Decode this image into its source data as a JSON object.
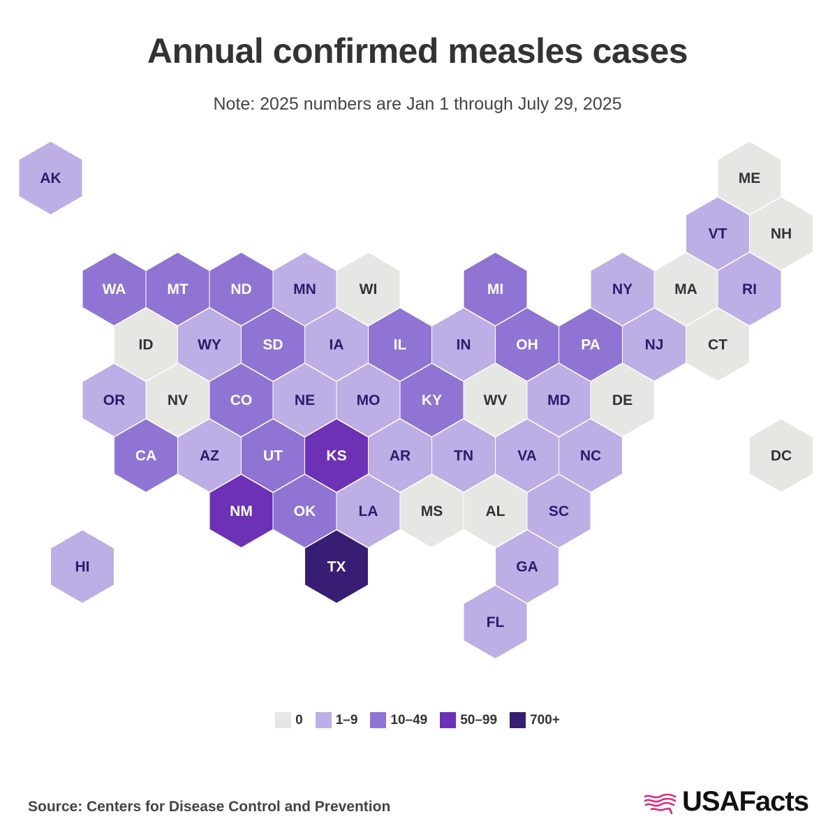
{
  "title": "Annual confirmed measles cases",
  "subtitle": "Note: 2025 numbers are Jan 1 through July 29, 2025",
  "source": "Source: Centers for Disease Control and Prevention",
  "brand": "USAFacts",
  "brand_color": "#e0267e",
  "legend": [
    {
      "bin": "0",
      "label": "0",
      "color": "#e6e6e3",
      "text_color": "#333333"
    },
    {
      "bin": "1-9",
      "label": "1–9",
      "color": "#bdaee6",
      "text_color": "#2e1a6a"
    },
    {
      "bin": "10-49",
      "label": "10–49",
      "color": "#8f74d3",
      "text_color": "#ffffff"
    },
    {
      "bin": "50-99",
      "label": "50–99",
      "color": "#6c31b5",
      "text_color": "#ffffff"
    },
    {
      "bin": "700+",
      "label": "700+",
      "color": "#371d73",
      "text_color": "#ffffff"
    }
  ],
  "states": [
    {
      "abbr": "AK",
      "row": 0,
      "col": 0,
      "bin": "1-9"
    },
    {
      "abbr": "ME",
      "row": 0,
      "col": 11,
      "bin": "0"
    },
    {
      "abbr": "VT",
      "row": 1,
      "col": 10,
      "bin": "1-9"
    },
    {
      "abbr": "NH",
      "row": 1,
      "col": 11,
      "bin": "0"
    },
    {
      "abbr": "WA",
      "row": 2,
      "col": 1,
      "bin": "10-49"
    },
    {
      "abbr": "MT",
      "row": 2,
      "col": 2,
      "bin": "10-49"
    },
    {
      "abbr": "ND",
      "row": 2,
      "col": 3,
      "bin": "10-49"
    },
    {
      "abbr": "MN",
      "row": 2,
      "col": 4,
      "bin": "1-9"
    },
    {
      "abbr": "WI",
      "row": 2,
      "col": 5,
      "bin": "0"
    },
    {
      "abbr": "MI",
      "row": 2,
      "col": 7,
      "bin": "10-49"
    },
    {
      "abbr": "NY",
      "row": 2,
      "col": 9,
      "bin": "1-9"
    },
    {
      "abbr": "MA",
      "row": 2,
      "col": 10,
      "bin": "0"
    },
    {
      "abbr": "RI",
      "row": 2,
      "col": 11,
      "bin": "1-9"
    },
    {
      "abbr": "ID",
      "row": 3,
      "col": 1,
      "bin": "0"
    },
    {
      "abbr": "WY",
      "row": 3,
      "col": 2,
      "bin": "1-9"
    },
    {
      "abbr": "SD",
      "row": 3,
      "col": 3,
      "bin": "10-49"
    },
    {
      "abbr": "IA",
      "row": 3,
      "col": 4,
      "bin": "1-9"
    },
    {
      "abbr": "IL",
      "row": 3,
      "col": 5,
      "bin": "10-49"
    },
    {
      "abbr": "IN",
      "row": 3,
      "col": 6,
      "bin": "1-9"
    },
    {
      "abbr": "OH",
      "row": 3,
      "col": 7,
      "bin": "10-49"
    },
    {
      "abbr": "PA",
      "row": 3,
      "col": 8,
      "bin": "10-49"
    },
    {
      "abbr": "NJ",
      "row": 3,
      "col": 9,
      "bin": "1-9"
    },
    {
      "abbr": "CT",
      "row": 3,
      "col": 10,
      "bin": "0"
    },
    {
      "abbr": "OR",
      "row": 4,
      "col": 1,
      "bin": "1-9"
    },
    {
      "abbr": "NV",
      "row": 4,
      "col": 2,
      "bin": "0"
    },
    {
      "abbr": "CO",
      "row": 4,
      "col": 3,
      "bin": "10-49"
    },
    {
      "abbr": "NE",
      "row": 4,
      "col": 4,
      "bin": "1-9"
    },
    {
      "abbr": "MO",
      "row": 4,
      "col": 5,
      "bin": "1-9"
    },
    {
      "abbr": "KY",
      "row": 4,
      "col": 6,
      "bin": "10-49"
    },
    {
      "abbr": "WV",
      "row": 4,
      "col": 7,
      "bin": "0"
    },
    {
      "abbr": "MD",
      "row": 4,
      "col": 8,
      "bin": "1-9"
    },
    {
      "abbr": "DE",
      "row": 4,
      "col": 9,
      "bin": "0"
    },
    {
      "abbr": "CA",
      "row": 5,
      "col": 1,
      "bin": "10-49"
    },
    {
      "abbr": "AZ",
      "row": 5,
      "col": 2,
      "bin": "1-9"
    },
    {
      "abbr": "UT",
      "row": 5,
      "col": 3,
      "bin": "10-49"
    },
    {
      "abbr": "KS",
      "row": 5,
      "col": 4,
      "bin": "50-99"
    },
    {
      "abbr": "AR",
      "row": 5,
      "col": 5,
      "bin": "1-9"
    },
    {
      "abbr": "TN",
      "row": 5,
      "col": 6,
      "bin": "1-9"
    },
    {
      "abbr": "VA",
      "row": 5,
      "col": 7,
      "bin": "1-9"
    },
    {
      "abbr": "NC",
      "row": 5,
      "col": 8,
      "bin": "1-9"
    },
    {
      "abbr": "DC",
      "row": 5,
      "col": 11,
      "bin": "0"
    },
    {
      "abbr": "NM",
      "row": 6,
      "col": 3,
      "bin": "50-99"
    },
    {
      "abbr": "OK",
      "row": 6,
      "col": 4,
      "bin": "10-49"
    },
    {
      "abbr": "LA",
      "row": 6,
      "col": 5,
      "bin": "1-9"
    },
    {
      "abbr": "MS",
      "row": 6,
      "col": 6,
      "bin": "0"
    },
    {
      "abbr": "AL",
      "row": 6,
      "col": 7,
      "bin": "0"
    },
    {
      "abbr": "SC",
      "row": 6,
      "col": 8,
      "bin": "1-9"
    },
    {
      "abbr": "HI",
      "row": 7,
      "col": 0,
      "bin": "1-9"
    },
    {
      "abbr": "TX",
      "row": 7,
      "col": 4,
      "bin": "700+"
    },
    {
      "abbr": "GA",
      "row": 7,
      "col": 7,
      "bin": "1-9"
    },
    {
      "abbr": "FL",
      "row": 8,
      "col": 7,
      "bin": "1-9"
    }
  ]
}
